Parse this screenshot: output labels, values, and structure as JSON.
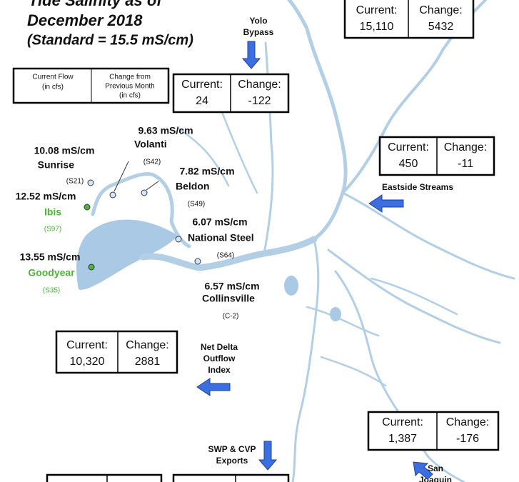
{
  "header": {
    "title": "Tide Salinity as of",
    "date": "December 2018",
    "standard": "(Standard = 15.5 mS/cm)"
  },
  "legend": {
    "current_flow": [
      "Current Flow",
      "(in cfs)"
    ],
    "change": [
      "Change from",
      "Previous Month",
      "(in cfs)"
    ]
  },
  "flows": [
    {
      "label": [],
      "current_label": "Current:",
      "current": "15,110",
      "change_label": "Change:",
      "change": "5432"
    },
    {
      "label": [
        "Yolo",
        "Bypass"
      ],
      "current_label": "Current:",
      "current": "24",
      "change_label": "Change:",
      "change": "-122"
    },
    {
      "label": [
        "Eastside Streams"
      ],
      "current_label": "Current:",
      "current": "450",
      "change_label": "Change:",
      "change": "-11"
    },
    {
      "label": [
        "Net Delta",
        "Outflow",
        "Index"
      ],
      "current_label": "Current:",
      "current": "10,320",
      "change_label": "Change:",
      "change": "2881"
    },
    {
      "label": [
        "San",
        "Joaquin"
      ],
      "current_label": "Current:",
      "current": "1,387",
      "change_label": "Change:",
      "change": "-176"
    },
    {
      "label": [
        "SWP & CVP",
        "Exports"
      ]
    }
  ],
  "stations": [
    {
      "reading": "10.08 mS/cm",
      "name": "Sunrise",
      "code": "(S21)",
      "color": "#111111"
    },
    {
      "reading": "9.63 mS/cm",
      "name": "Volanti",
      "code": "(S42)",
      "color": "#111111"
    },
    {
      "reading": "7.82 mS/cm",
      "name": "Beldon",
      "code": "(S49)",
      "color": "#111111"
    },
    {
      "reading": "12.52 mS/cm",
      "name": "Ibis",
      "code": "(S97)",
      "color": "#4fb33a"
    },
    {
      "reading": "6.07 mS/cm",
      "name": "National Steel",
      "code": "(S64)",
      "color": "#111111"
    },
    {
      "reading": "13.55 mS/cm",
      "name": "Goodyear",
      "code": "(S35)",
      "color": "#4fb33a"
    },
    {
      "reading": "6.57 mS/cm",
      "name": "Collinsville",
      "code": "(C-2)",
      "color": "#111111"
    }
  ]
}
